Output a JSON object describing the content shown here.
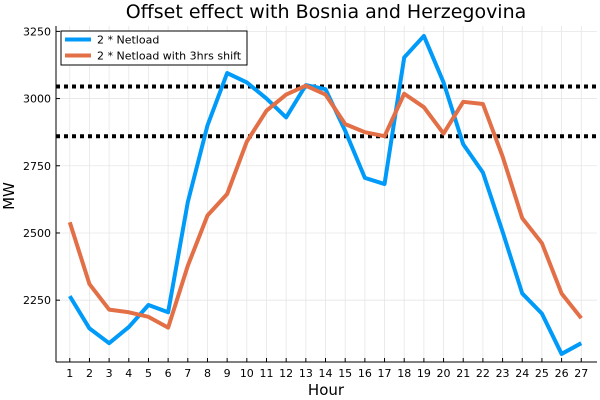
{
  "chart_data": {
    "type": "line",
    "title": "Offset effect with Bosnia and Herzegovina",
    "xlabel": "Hour",
    "ylabel": "MW",
    "x": [
      1,
      2,
      3,
      4,
      5,
      6,
      7,
      8,
      9,
      10,
      11,
      12,
      13,
      14,
      15,
      16,
      17,
      18,
      19,
      20,
      21,
      22,
      23,
      24,
      25,
      26,
      27
    ],
    "xticks": [
      "1",
      "2",
      "3",
      "4",
      "5",
      "6",
      "7",
      "8",
      "9",
      "10",
      "11",
      "12",
      "13",
      "14",
      "15",
      "16",
      "17",
      "18",
      "19",
      "20",
      "21",
      "22",
      "23",
      "24",
      "25",
      "26",
      "27"
    ],
    "xlim": [
      0.3,
      27.8
    ],
    "ylim": [
      2020,
      3270
    ],
    "yticks": [
      2250,
      2500,
      2750,
      3000,
      3250
    ],
    "grid": true,
    "legend_position": "top-left",
    "series": [
      {
        "name": "2 * Netload",
        "color": "#009af9",
        "values": [
          2265,
          2145,
          2090,
          2150,
          2232,
          2205,
          2615,
          2900,
          3095,
          3060,
          3000,
          2930,
          3050,
          3035,
          2880,
          2705,
          2682,
          3153,
          3233,
          3060,
          2830,
          2725,
          2505,
          2275,
          2200,
          2050,
          2090
        ]
      },
      {
        "name": "2 * Netload with 3hrs shift",
        "color": "#e26f46",
        "values": [
          2540,
          2310,
          2215,
          2205,
          2188,
          2148,
          2378,
          2565,
          2645,
          2840,
          2955,
          3015,
          3048,
          3015,
          2905,
          2875,
          2860,
          3018,
          2968,
          2870,
          2988,
          2980,
          2785,
          2555,
          2462,
          2275,
          2183
        ]
      }
    ],
    "hlines": [
      {
        "y": 3045,
        "color": "#000000",
        "style": "dotted"
      },
      {
        "y": 2860,
        "color": "#000000",
        "style": "dotted"
      }
    ]
  }
}
